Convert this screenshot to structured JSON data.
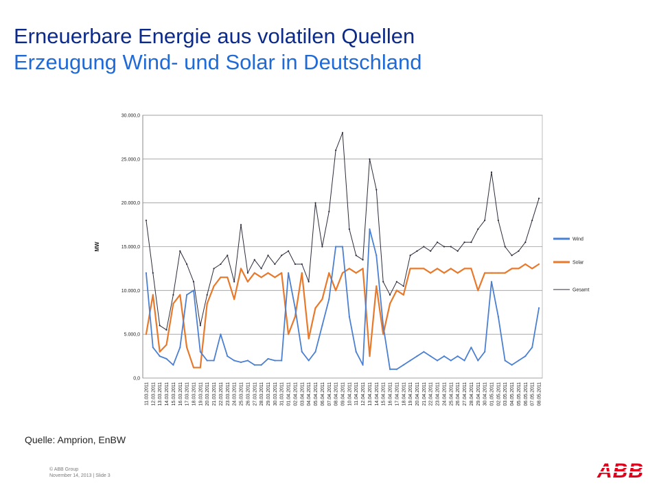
{
  "slide": {
    "title": "Erneuerbare Energie aus volatilen Quellen",
    "subtitle": "Erzeugung Wind- und Solar in Deutschland",
    "source": "Quelle: Amprion, EnBW",
    "footer_copyright": "© ABB Group",
    "footer_date": "November 14, 2013 | Slide 3",
    "logo_text": "ABB",
    "colors": {
      "title": "#0c2a8a",
      "subtitle": "#1f6ad6",
      "logo": "#e2001a"
    }
  },
  "chart_data": {
    "type": "line",
    "title": "",
    "xlabel": "",
    "ylabel": "MW",
    "ylim": [
      0,
      30000
    ],
    "yticks": [
      "0,0",
      "5.000,0",
      "10.000,0",
      "15.000,0",
      "20.000,0",
      "25.000,0",
      "30.000,0"
    ],
    "grid": true,
    "legend_position": "right",
    "categories": [
      "11.03.2011",
      "12.03.2011",
      "13.03.2011",
      "14.03.2011",
      "15.03.2011",
      "16.03.2011",
      "17.03.2011",
      "18.03.2011",
      "19.03.2011",
      "20.03.2011",
      "21.03.2011",
      "22.03.2011",
      "23.03.2011",
      "24.03.2011",
      "25.03.2011",
      "26.03.2011",
      "27.03.2011",
      "28.03.2011",
      "29.03.2011",
      "30.03.2011",
      "31.03.2011",
      "01.04.2011",
      "02.04.2011",
      "03.04.2011",
      "04.04.2011",
      "05.04.2011",
      "06.04.2011",
      "07.04.2011",
      "08.04.2011",
      "09.04.2011",
      "10.04.2011",
      "11.04.2011",
      "12.04.2011",
      "13.04.2011",
      "14.04.2011",
      "15.04.2011",
      "16.04.2011",
      "17.04.2011",
      "18.04.2011",
      "19.04.2011",
      "20.04.2011",
      "21.04.2011",
      "22.04.2011",
      "23.04.2011",
      "24.04.2011",
      "25.04.2011",
      "26.04.2011",
      "27.04.2011",
      "28.04.2011",
      "29.04.2011",
      "30.04.2011",
      "01.05.2011",
      "02.05.2011",
      "03.05.2011",
      "04.05.2011",
      "05.05.2011",
      "06.05.2011",
      "07.05.2011",
      "08.05.2011"
    ],
    "series": [
      {
        "name": "Wind",
        "color": "#4a7fd1",
        "values": [
          12000,
          3500,
          2500,
          2200,
          1500,
          3500,
          9500,
          10000,
          3000,
          2000,
          2000,
          5000,
          2500,
          2000,
          1800,
          2000,
          1500,
          1500,
          2200,
          2000,
          2000,
          12000,
          8000,
          3000,
          2000,
          3000,
          6000,
          9000,
          15000,
          15000,
          7000,
          3000,
          1500,
          17000,
          14000,
          6000,
          1000,
          1000,
          1500,
          2000,
          2500,
          3000,
          2500,
          2000,
          2500,
          2000,
          2500,
          2000,
          3500,
          2000,
          3000,
          11000,
          7000,
          2000,
          1500,
          2000,
          2500,
          3500,
          8000
        ]
      },
      {
        "name": "Solar",
        "color": "#e8782a",
        "values": [
          5000,
          9500,
          3000,
          3800,
          8500,
          9500,
          3500,
          1200,
          1200,
          8500,
          10500,
          11500,
          11500,
          9000,
          12500,
          11000,
          12000,
          11500,
          12000,
          11500,
          12000,
          5000,
          7000,
          12000,
          4500,
          8000,
          9000,
          12000,
          10000,
          12000,
          12500,
          12000,
          12500,
          2500,
          10500,
          5000,
          8500,
          10000,
          9500,
          12500,
          12500,
          12500,
          12000,
          12500,
          12000,
          12500,
          12000,
          12500,
          12500,
          10000,
          12000,
          12000,
          12000,
          12000,
          12500,
          12500,
          13000,
          12500,
          13000
        ]
      },
      {
        "name": "Gesamt",
        "color": "#2a2a3a",
        "values": [
          18000,
          12000,
          6000,
          5500,
          9500,
          14500,
          13000,
          11000,
          6000,
          9500,
          12500,
          13000,
          14000,
          11000,
          17500,
          12000,
          13500,
          12500,
          14000,
          13000,
          14000,
          14500,
          13000,
          13000,
          11000,
          20000,
          15000,
          19000,
          26000,
          28000,
          17000,
          14000,
          13500,
          25000,
          21500,
          11000,
          9500,
          11000,
          10500,
          14000,
          14500,
          15000,
          14500,
          15500,
          15000,
          15000,
          14500,
          15500,
          15500,
          17000,
          18000,
          23500,
          18000,
          15000,
          14000,
          14500,
          15500,
          18000,
          20500
        ]
      }
    ]
  }
}
